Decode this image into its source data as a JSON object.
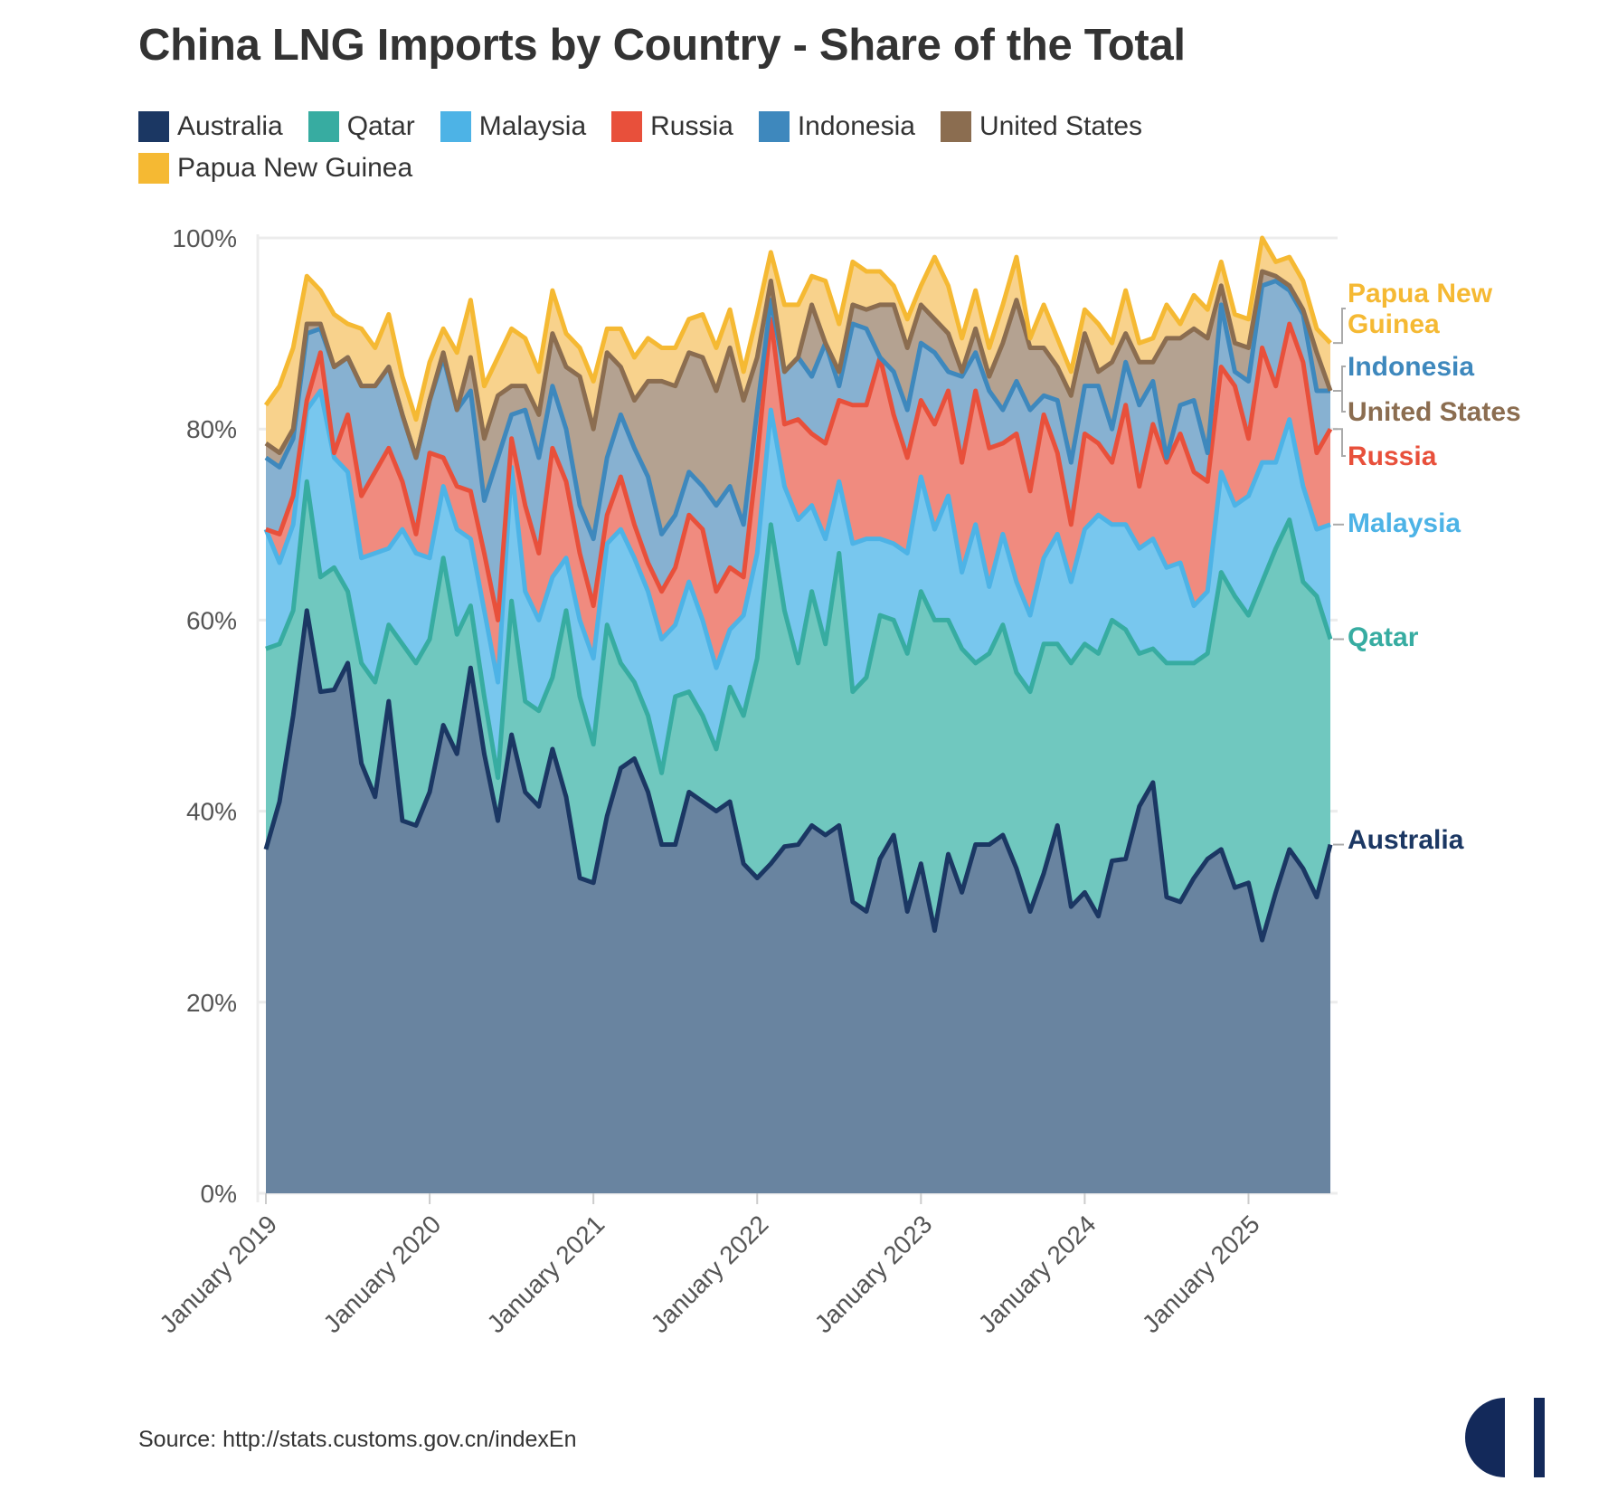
{
  "title": "China LNG Imports by Country - Share of the Total",
  "source": "Source: http://stats.customs.gov.cn/indexEn",
  "chart_data": {
    "type": "area",
    "stacked": true,
    "title": "China LNG Imports by Country - Share of the Total",
    "xlabel": "",
    "ylabel": "",
    "ylim": [
      0,
      100
    ],
    "y_unit": "%",
    "grid": true,
    "legend_position": "top-left",
    "y_ticks": [
      "0%",
      "20%",
      "40%",
      "60%",
      "80%",
      "100%"
    ],
    "x_ticks": [
      "January 2019",
      "January 2020",
      "January 2021",
      "January 2022",
      "January 2023",
      "January 2024",
      "January 2025"
    ],
    "x": [
      "2019-01",
      "2019-02",
      "2019-03",
      "2019-04",
      "2019-05",
      "2019-06",
      "2019-07",
      "2019-08",
      "2019-09",
      "2019-10",
      "2019-11",
      "2019-12",
      "2020-01",
      "2020-02",
      "2020-03",
      "2020-04",
      "2020-05",
      "2020-06",
      "2020-07",
      "2020-08",
      "2020-09",
      "2020-10",
      "2020-11",
      "2020-12",
      "2021-01",
      "2021-02",
      "2021-03",
      "2021-04",
      "2021-05",
      "2021-06",
      "2021-07",
      "2021-08",
      "2021-09",
      "2021-10",
      "2021-11",
      "2021-12",
      "2022-01",
      "2022-02",
      "2022-03",
      "2022-04",
      "2022-05",
      "2022-06",
      "2022-07",
      "2022-08",
      "2022-09",
      "2022-10",
      "2022-11",
      "2022-12",
      "2023-01",
      "2023-02",
      "2023-03",
      "2023-04",
      "2023-05",
      "2023-06",
      "2023-07",
      "2023-08",
      "2023-09",
      "2023-10",
      "2023-11",
      "2023-12",
      "2024-01",
      "2024-02",
      "2024-03",
      "2024-04",
      "2024-05",
      "2024-06",
      "2024-07",
      "2024-08",
      "2024-09",
      "2024-10",
      "2024-11",
      "2024-12",
      "2025-01",
      "2025-02",
      "2025-03",
      "2025-04",
      "2025-05",
      "2025-06",
      "2025-07"
    ],
    "series": [
      {
        "name": "Australia",
        "color": "#1b3763",
        "fill": "#6984a0",
        "end_label": "Australia",
        "values": [
          36,
          41,
          50,
          61,
          52.5,
          52.7,
          55.5,
          45,
          41.5,
          51.5,
          39,
          38.5,
          42,
          49,
          46,
          55,
          46,
          39,
          48,
          42,
          40.5,
          46.5,
          41.5,
          33,
          32.5,
          39.5,
          44.5,
          45.5,
          42,
          36.5,
          36.5,
          42,
          41,
          40,
          41,
          34.5,
          33,
          34.5,
          36.3,
          36.5,
          38.5,
          37.5,
          38.5,
          30.5,
          29.5,
          35,
          37.5,
          29.5,
          34.5,
          27.5,
          35.5,
          31.5,
          36.5,
          36.5,
          37.5,
          34,
          29.5,
          33.5,
          38.5,
          30,
          31.5,
          29,
          34.8,
          35,
          40.5,
          43,
          31,
          30.5,
          33,
          35,
          36,
          32,
          32.5,
          26.5,
          31.5,
          36,
          34,
          31,
          36.5
        ]
      },
      {
        "name": "Qatar",
        "color": "#37aca1",
        "fill": "#70c8bf",
        "end_label": "Qatar",
        "values": [
          21,
          16.5,
          11,
          13.5,
          12,
          12.8,
          7.5,
          10.5,
          12,
          8,
          18.5,
          17,
          16,
          17.5,
          12.5,
          6.5,
          6,
          4.5,
          14,
          9.5,
          10,
          7.5,
          19.5,
          19,
          14.5,
          20,
          11,
          8,
          8,
          7.5,
          15.5,
          10.5,
          9,
          6.5,
          12,
          15.5,
          23,
          35.5,
          24.7,
          19,
          24.5,
          20,
          28.5,
          22,
          24.5,
          25.5,
          22.5,
          27,
          28.5,
          32.5,
          24.5,
          25.5,
          19,
          20,
          22,
          20.5,
          23,
          24,
          19,
          25.5,
          26,
          27.5,
          25.2,
          24,
          16,
          14,
          24.5,
          25,
          22.5,
          21.5,
          29,
          30.5,
          28,
          37.5,
          36,
          34.5,
          30,
          31.5,
          21.5
        ]
      },
      {
        "name": "Malaysia",
        "color": "#4db3e6",
        "fill": "#78c7ee",
        "end_label": "Malaysia",
        "values": [
          12.5,
          8.5,
          9,
          7.5,
          19.5,
          11.5,
          12.5,
          11,
          13.5,
          8,
          12,
          11.5,
          8.5,
          7.5,
          11,
          7,
          9,
          10,
          14,
          11.5,
          9.5,
          10.5,
          5.5,
          8,
          9,
          8.5,
          14,
          13,
          13,
          14,
          7.5,
          11.5,
          10,
          8.5,
          6,
          10.5,
          11,
          12,
          13,
          15,
          9,
          11,
          7.5,
          15.5,
          14.5,
          8,
          8,
          10.5,
          12,
          9.5,
          13,
          8,
          14.5,
          7,
          9.5,
          9.5,
          8,
          9,
          11.5,
          8.5,
          12,
          14.5,
          10,
          11,
          11,
          11.5,
          10,
          10.5,
          6,
          6.5,
          10.5,
          9.5,
          12.5,
          12.5,
          9,
          10.5,
          10,
          7,
          12
        ]
      },
      {
        "name": "Russia",
        "color": "#e8503b",
        "fill": "#f08b7f",
        "end_label": "Russia",
        "values": [
          0,
          3,
          3,
          1,
          4,
          0.5,
          6,
          6.5,
          8.5,
          10.5,
          5,
          2,
          11,
          3,
          4.5,
          5,
          6,
          6.5,
          3,
          9,
          7,
          13.5,
          8,
          7,
          5.5,
          3,
          5.5,
          3.5,
          3,
          5,
          6,
          7,
          9.5,
          8,
          6.5,
          4,
          10,
          9.5,
          6.5,
          10.5,
          7.5,
          10,
          8.5,
          14.5,
          14,
          19,
          13.5,
          10,
          8,
          11,
          11,
          11.5,
          14,
          14.5,
          9.5,
          15.5,
          13,
          15,
          8.5,
          6,
          10,
          7.5,
          6.5,
          12.5,
          6.5,
          12,
          11,
          13.5,
          14,
          11.5,
          11,
          12.5,
          6,
          12,
          8,
          10,
          13,
          8,
          10
        ]
      },
      {
        "name": "Indonesia",
        "color": "#3e88bd",
        "fill": "#87b1d1",
        "end_label": "Indonesia",
        "values": [
          7.5,
          7,
          6,
          7,
          2.5,
          9,
          6,
          11.5,
          9,
          8.5,
          7,
          8,
          5.5,
          10.5,
          8,
          10.5,
          5.5,
          17,
          2.5,
          10,
          10,
          6.5,
          5.5,
          5,
          7,
          6,
          6.5,
          8,
          9,
          6,
          5.5,
          4.5,
          4.5,
          9,
          8.5,
          5.5,
          5,
          2,
          5.5,
          6.5,
          6,
          10.5,
          1.5,
          8.5,
          8,
          0,
          4.5,
          5,
          6,
          7.5,
          2,
          9,
          4,
          6,
          3.5,
          5.5,
          8.5,
          2,
          5.5,
          6.5,
          5,
          6,
          3.5,
          4.5,
          8.5,
          4.5,
          0.5,
          3,
          7.5,
          3,
          6.5,
          1.5,
          6,
          6.5,
          11,
          3.5,
          5,
          6.5,
          4
        ]
      },
      {
        "name": "United States",
        "color": "#8b6d50",
        "fill": "#b4a291",
        "end_label": "United States",
        "values": [
          1.5,
          1.5,
          1,
          1,
          0.5,
          0,
          0,
          0,
          0,
          0,
          0,
          0,
          0,
          0.5,
          0,
          3.5,
          6.5,
          6.5,
          3,
          2.5,
          4.5,
          5.5,
          6.5,
          13.5,
          11.5,
          11,
          5,
          5,
          10,
          16,
          13.5,
          12.5,
          13.5,
          12,
          14.5,
          13,
          5.5,
          2,
          0,
          0,
          7.5,
          0,
          1.5,
          2,
          2,
          5.5,
          7,
          6.5,
          4,
          3.5,
          4,
          0.5,
          2.5,
          1.5,
          7,
          8.5,
          6.5,
          5,
          3.5,
          7,
          5.5,
          1.5,
          7,
          3,
          4.5,
          2,
          12.5,
          7,
          7.5,
          12,
          2,
          3,
          3.5,
          1.5,
          0.5,
          0.5,
          0.5,
          4,
          0
        ]
      },
      {
        "name": "Papua New Guinea",
        "color": "#f5b933",
        "fill": "#f8d28c",
        "end_label": "Papua New Guinea",
        "values": [
          4,
          7,
          8.5,
          5,
          3.5,
          5.5,
          3.5,
          6,
          4,
          5.5,
          4,
          4,
          4,
          2.5,
          6,
          6,
          5.5,
          4,
          6,
          5,
          4.5,
          4.5,
          3.5,
          3,
          5,
          2.5,
          4,
          4.5,
          4.5,
          3.5,
          4,
          3.5,
          4.5,
          4.5,
          4,
          3,
          4.5,
          3,
          7,
          5.5,
          3,
          6.5,
          5,
          4.5,
          4,
          3.5,
          2,
          3,
          2,
          6.5,
          5,
          3.5,
          4,
          3,
          4,
          4.5,
          1,
          4.5,
          3,
          2.5,
          2.5,
          5,
          2,
          4.5,
          2,
          2.5,
          3.5,
          1.5,
          3.5,
          3,
          2.5,
          3,
          3,
          3.5,
          1.5,
          3,
          3,
          2.5,
          5
        ]
      }
    ]
  }
}
